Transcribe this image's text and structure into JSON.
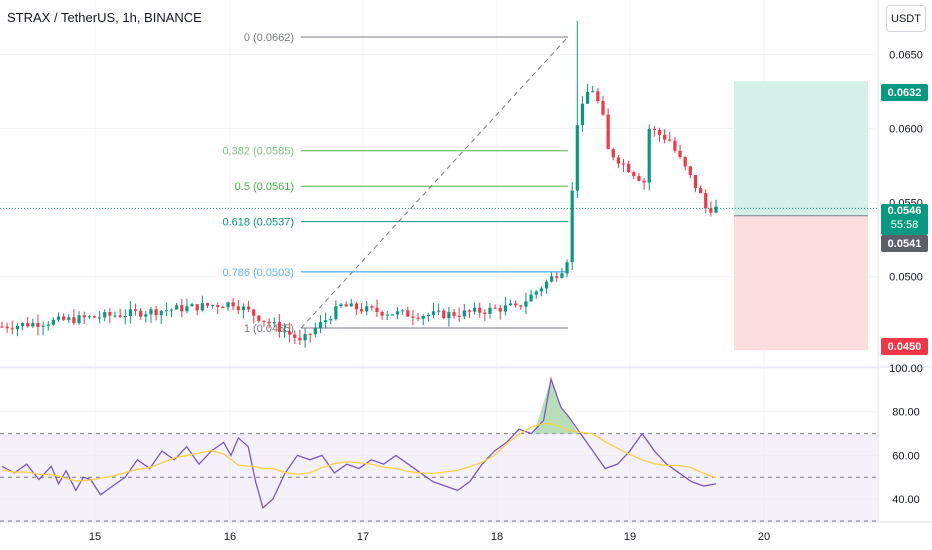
{
  "header": {
    "title": "STRAX / TetherUS, 1h, BINANCE",
    "currency_button": "USDT"
  },
  "price_tags": {
    "target": "0.0632",
    "current": "0.0546",
    "countdown": "55:58",
    "entry": "0.0541",
    "stop": "0.0450"
  },
  "colors": {
    "up": "#089981",
    "down": "#f23645",
    "rsi_line": "#7e57c2",
    "rsi_ma": "#f7d046",
    "target_zone": "#d5efe9",
    "stop_zone": "#fcdde0",
    "entry_tag": "#5d606b"
  },
  "chart_data": [
    {
      "type": "candlestick",
      "title": "STRAX / TetherUS, 1h, BINANCE",
      "x_ticks": [
        "15",
        "16",
        "17",
        "18",
        "19",
        "20"
      ],
      "y_ticks": [
        "0.0500",
        "0.0550",
        "0.0600",
        "0.0650"
      ],
      "ylim": [
        0.044,
        0.0687
      ],
      "series_summary": {
        "start": 0.0466,
        "low": 0.0455,
        "pre_spike": 0.0512,
        "high": 0.0673,
        "latest": 0.0546
      },
      "fib_levels": [
        {
          "ratio": "0",
          "price": 0.0662,
          "label": "0 (0.0662)"
        },
        {
          "ratio": "0.382",
          "price": 0.0585,
          "label": "0.382 (0.0585)"
        },
        {
          "ratio": "0.5",
          "price": 0.0561,
          "label": "0.5 (0.0561)"
        },
        {
          "ratio": "0.618",
          "price": 0.0537,
          "label": "0.618 (0.0537)"
        },
        {
          "ratio": "0.786",
          "price": 0.0503,
          "label": "0.786 (0.0503)"
        },
        {
          "ratio": "1",
          "price": 0.0465,
          "label": "1 (0.0465)"
        }
      ],
      "position": {
        "target": 0.0632,
        "entry": 0.0541,
        "stop": 0.045
      }
    },
    {
      "type": "line",
      "ylim": [
        30,
        100
      ],
      "y_ticks": [
        "100.00",
        "80.00",
        "60.00",
        "40.00"
      ],
      "bands": [
        70,
        50,
        30
      ],
      "rsi_points": [
        [
          0.0,
          55
        ],
        [
          0.5,
          52
        ],
        [
          1.0,
          56
        ],
        [
          1.5,
          49
        ],
        [
          2.0,
          55
        ],
        [
          2.3,
          47
        ],
        [
          2.6,
          53
        ],
        [
          3.0,
          44
        ],
        [
          3.3,
          50
        ],
        [
          3.6,
          49
        ],
        [
          4.0,
          42
        ],
        [
          4.5,
          46
        ],
        [
          5.0,
          50
        ],
        [
          5.5,
          58
        ],
        [
          6.0,
          54
        ],
        [
          6.5,
          62
        ],
        [
          7.0,
          58
        ],
        [
          7.5,
          64
        ],
        [
          8.0,
          56
        ],
        [
          8.5,
          62
        ],
        [
          9.0,
          66
        ],
        [
          9.3,
          60
        ],
        [
          9.6,
          68
        ],
        [
          10.0,
          64
        ],
        [
          10.3,
          48
        ],
        [
          10.6,
          36
        ],
        [
          11.0,
          40
        ],
        [
          11.5,
          52
        ],
        [
          12.0,
          60
        ],
        [
          12.5,
          58
        ],
        [
          13.0,
          60
        ],
        [
          13.5,
          52
        ],
        [
          14.0,
          56
        ],
        [
          14.5,
          54
        ],
        [
          15.0,
          58
        ],
        [
          15.5,
          56
        ],
        [
          16.0,
          60
        ],
        [
          16.5,
          56
        ],
        [
          17.0,
          52
        ],
        [
          17.5,
          48
        ],
        [
          18.0,
          46
        ],
        [
          18.5,
          44
        ],
        [
          19.0,
          48
        ],
        [
          19.5,
          56
        ],
        [
          20.0,
          62
        ],
        [
          20.5,
          66
        ],
        [
          21.0,
          72
        ],
        [
          21.5,
          70
        ],
        [
          22.0,
          76
        ],
        [
          22.3,
          95
        ],
        [
          22.7,
          82
        ],
        [
          23.0,
          78
        ],
        [
          23.5,
          70
        ],
        [
          24.0,
          62
        ],
        [
          24.5,
          54
        ],
        [
          25.0,
          56
        ],
        [
          25.5,
          62
        ],
        [
          26.0,
          70
        ],
        [
          26.5,
          62
        ],
        [
          27.0,
          56
        ],
        [
          27.5,
          52
        ],
        [
          28.0,
          48
        ],
        [
          28.5,
          46
        ],
        [
          29.0,
          47
        ]
      ]
    }
  ]
}
